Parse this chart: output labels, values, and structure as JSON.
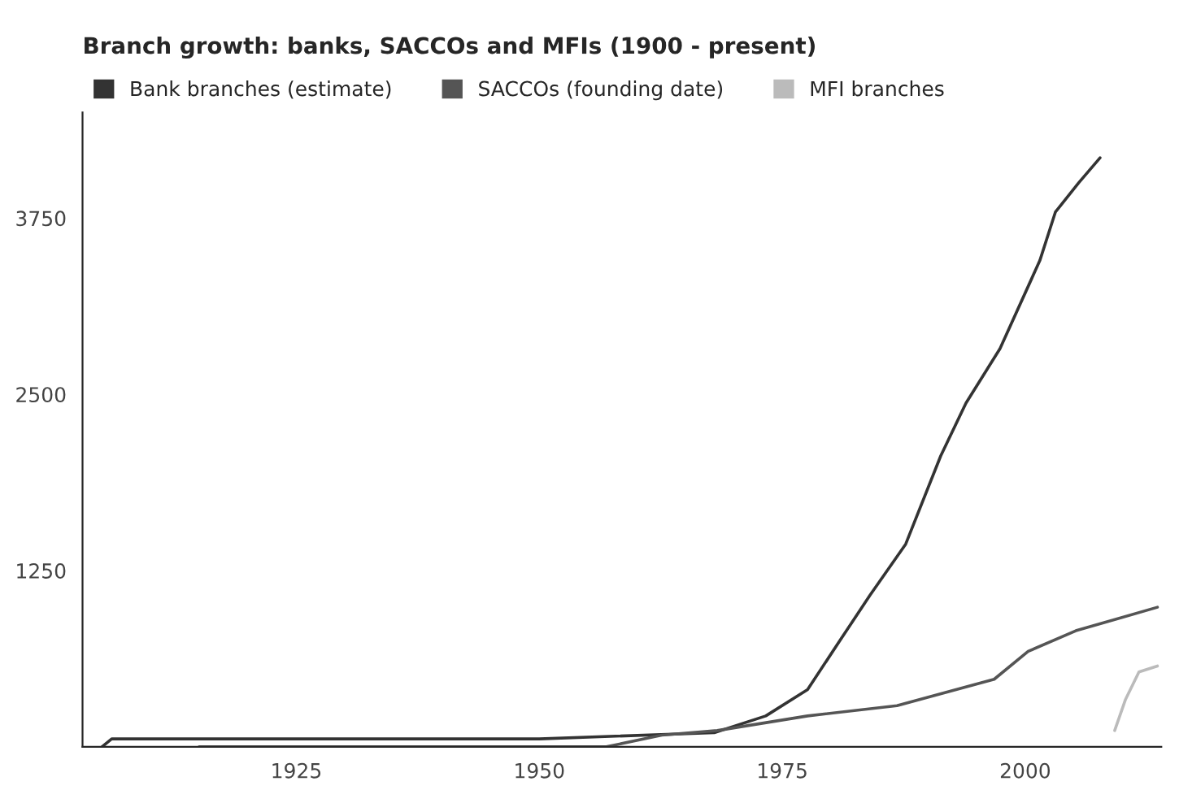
{
  "chart_data": {
    "type": "line",
    "title": "Branch growth: banks, SACCOs and MFIs (1900 - present)",
    "xlim": [
      1903,
      2014
    ],
    "xticks": [
      1925,
      1950,
      1975,
      2000
    ],
    "ylim": [
      0,
      4500
    ],
    "yticks": [
      1250,
      2500,
      3750
    ],
    "legend": "top left",
    "grid": false,
    "series": [
      {
        "name": "Bank branches (estimate)",
        "color": "#333333",
        "x": [
          1905,
          1906,
          1950,
          1968,
          1973.3,
          1977.6,
          1981.1,
          1984,
          1987.7,
          1991.3,
          1993.9,
          1997.4,
          2001.5,
          2003.1,
          2005.5,
          2007.7
        ],
        "values": [
          0,
          56,
          56,
          100,
          219,
          406,
          771,
          1073,
          1438,
          2063,
          2438,
          2824,
          3449,
          3793,
          4001,
          4178
        ]
      },
      {
        "name": "SACCOs (founding date)",
        "color": "#555555",
        "x": [
          1915,
          1956.9,
          1962.6,
          1968.3,
          1977.6,
          1986.8,
          1996.8,
          2000.3,
          2005.2,
          2013.6
        ],
        "values": [
          0,
          0,
          83,
          115,
          219,
          292,
          479,
          677,
          823,
          990
        ]
      },
      {
        "name": "MFI branches",
        "color": "#bbbbbb",
        "x": [
          2009.2,
          2010.3,
          2011.7,
          2013.6
        ],
        "values": [
          115,
          333,
          531,
          573
        ]
      }
    ]
  }
}
